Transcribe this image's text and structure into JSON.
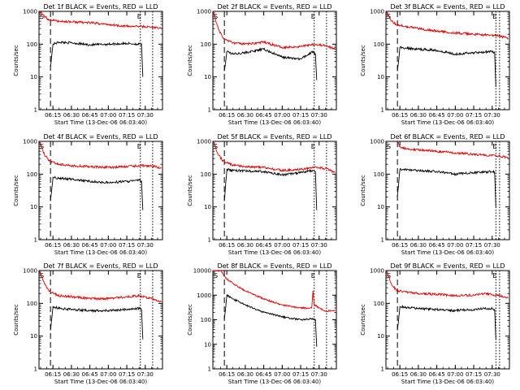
{
  "colors": {
    "events": "#000000",
    "lld": "#dd0000",
    "axis": "#000000",
    "background": "#ffffff"
  },
  "common": {
    "xlabel": "Start Time (13-Dec-06 06:03:40)",
    "ylabel": "Counts/sec",
    "x_ticks": [
      "06:15",
      "06:30",
      "06:45",
      "07:00",
      "07:15",
      "07:30"
    ],
    "y_ticks_small": [
      "1",
      "10",
      "100",
      "1000"
    ],
    "y_ticks_large": [
      "1",
      "10",
      "100",
      "1000",
      "10000"
    ],
    "marker_start": "S",
    "marker_end": "E"
  },
  "chart_data": [
    {
      "type": "line",
      "title": "Det 1f BLACK = Events, RED = LLD",
      "x_range": [
        "06:03:40",
        "07:44:00"
      ],
      "ylim": [
        1,
        1000
      ],
      "y_scale": "log",
      "start_line": "06:13",
      "end_lines": [
        "07:26",
        "07:36"
      ],
      "series": [
        {
          "name": "Events",
          "color": "black",
          "x": [
            "06:13",
            "06:15",
            "06:20",
            "06:30",
            "06:45",
            "07:00",
            "07:15",
            "07:25",
            "07:27",
            "07:28"
          ],
          "y": [
            20,
            100,
            115,
            110,
            95,
            100,
            105,
            100,
            100,
            10
          ]
        },
        {
          "name": "LLD",
          "color": "red",
          "x": [
            "06:04",
            "06:08",
            "06:12",
            "06:20",
            "06:30",
            "06:45",
            "07:00",
            "07:15",
            "07:25",
            "07:35",
            "07:43"
          ],
          "y": [
            1000,
            700,
            550,
            500,
            480,
            450,
            400,
            350,
            350,
            330,
            300
          ]
        }
      ]
    },
    {
      "type": "line",
      "title": "Det 2f BLACK = Events, RED = LLD",
      "x_range": [
        "06:03:40",
        "07:44:00"
      ],
      "ylim": [
        1,
        1000
      ],
      "y_scale": "log",
      "start_line": "06:13",
      "end_lines": [
        "07:26",
        "07:36"
      ],
      "series": [
        {
          "name": "Events",
          "color": "black",
          "x": [
            "06:13",
            "06:15",
            "06:20",
            "06:30",
            "06:45",
            "07:00",
            "07:15",
            "07:25",
            "07:27",
            "07:28"
          ],
          "y": [
            15,
            60,
            50,
            55,
            70,
            40,
            35,
            60,
            50,
            8
          ]
        },
        {
          "name": "LLD",
          "color": "red",
          "x": [
            "06:04",
            "06:08",
            "06:12",
            "06:20",
            "06:30",
            "06:45",
            "07:00",
            "07:15",
            "07:25",
            "07:35",
            "07:43"
          ],
          "y": [
            1000,
            300,
            150,
            110,
            100,
            115,
            80,
            85,
            100,
            90,
            70
          ]
        }
      ]
    },
    {
      "type": "line",
      "title": "Det 3f BLACK = Events, RED = LLD",
      "x_range": [
        "06:03:40",
        "07:44:00"
      ],
      "ylim": [
        1,
        1000
      ],
      "y_scale": "log",
      "start_line": "06:13",
      "end_lines": [
        "07:33",
        "07:36"
      ],
      "series": [
        {
          "name": "Events",
          "color": "black",
          "x": [
            "06:13",
            "06:15",
            "06:20",
            "06:30",
            "06:45",
            "07:00",
            "07:15",
            "07:30",
            "07:32",
            "07:33"
          ],
          "y": [
            15,
            80,
            75,
            70,
            65,
            50,
            55,
            60,
            55,
            5
          ]
        },
        {
          "name": "LLD",
          "color": "red",
          "x": [
            "06:04",
            "06:08",
            "06:12",
            "06:20",
            "06:30",
            "06:45",
            "07:00",
            "07:15",
            "07:25",
            "07:35",
            "07:43"
          ],
          "y": [
            1000,
            500,
            400,
            350,
            300,
            250,
            220,
            200,
            190,
            180,
            150
          ]
        }
      ]
    },
    {
      "type": "line",
      "title": "Det 4f BLACK = Events, RED = LLD",
      "x_range": [
        "06:03:40",
        "07:44:00"
      ],
      "ylim": [
        1,
        1000
      ],
      "y_scale": "log",
      "start_line": "06:13",
      "end_lines": [
        "07:26",
        "07:36"
      ],
      "series": [
        {
          "name": "Events",
          "color": "black",
          "x": [
            "06:13",
            "06:15",
            "06:20",
            "06:30",
            "06:45",
            "07:00",
            "07:15",
            "07:25",
            "07:27",
            "07:28"
          ],
          "y": [
            15,
            80,
            75,
            70,
            60,
            55,
            60,
            65,
            60,
            8
          ]
        },
        {
          "name": "LLD",
          "color": "red",
          "x": [
            "06:04",
            "06:08",
            "06:12",
            "06:20",
            "06:30",
            "06:45",
            "07:00",
            "07:15",
            "07:25",
            "07:35",
            "07:43"
          ],
          "y": [
            1000,
            400,
            250,
            200,
            180,
            170,
            160,
            170,
            180,
            180,
            150
          ]
        }
      ]
    },
    {
      "type": "line",
      "title": "Det 5f BLACK = Events, RED = LLD",
      "x_range": [
        "06:03:40",
        "07:44:00"
      ],
      "ylim": [
        1,
        1000
      ],
      "y_scale": "log",
      "start_line": "06:13",
      "end_lines": [
        "07:26",
        "07:36"
      ],
      "series": [
        {
          "name": "Events",
          "color": "black",
          "x": [
            "06:13",
            "06:15",
            "06:20",
            "06:30",
            "06:45",
            "07:00",
            "07:15",
            "07:25",
            "07:27",
            "07:28"
          ],
          "y": [
            15,
            140,
            130,
            125,
            120,
            95,
            110,
            130,
            120,
            8
          ]
        },
        {
          "name": "LLD",
          "color": "red",
          "x": [
            "06:04",
            "06:08",
            "06:12",
            "06:20",
            "06:30",
            "06:45",
            "07:00",
            "07:15",
            "07:25",
            "07:35",
            "07:43"
          ],
          "y": [
            1000,
            400,
            250,
            190,
            170,
            160,
            130,
            140,
            160,
            150,
            110
          ]
        }
      ]
    },
    {
      "type": "line",
      "title": "Det 6f BLACK = Events, RED = LLD",
      "x_range": [
        "06:03:40",
        "07:44:00"
      ],
      "ylim": [
        1,
        1000
      ],
      "y_scale": "log",
      "start_line": "06:13",
      "end_lines": [
        "07:33",
        "07:36"
      ],
      "series": [
        {
          "name": "Events",
          "color": "black",
          "x": [
            "06:13",
            "06:15",
            "06:20",
            "06:30",
            "06:45",
            "07:00",
            "07:15",
            "07:30",
            "07:32",
            "07:33"
          ],
          "y": [
            20,
            140,
            135,
            130,
            120,
            100,
            110,
            120,
            115,
            10
          ]
        },
        {
          "name": "LLD",
          "color": "red",
          "x": [
            "06:13",
            "06:15",
            "06:20",
            "06:30",
            "06:45",
            "07:00",
            "07:15",
            "07:25",
            "07:35",
            "07:43"
          ],
          "y": [
            1000,
            700,
            600,
            550,
            500,
            450,
            400,
            380,
            360,
            320
          ]
        }
      ]
    },
    {
      "type": "line",
      "title": "Det 7f BLACK = Events, RED = LLD",
      "x_range": [
        "06:03:40",
        "07:44:00"
      ],
      "ylim": [
        1,
        1000
      ],
      "y_scale": "log",
      "start_line": "06:13",
      "end_lines": [
        "07:26",
        "07:36"
      ],
      "series": [
        {
          "name": "Events",
          "color": "black",
          "x": [
            "06:13",
            "06:15",
            "06:20",
            "06:30",
            "06:45",
            "07:00",
            "07:15",
            "07:25",
            "07:27",
            "07:28"
          ],
          "y": [
            15,
            80,
            70,
            65,
            60,
            60,
            65,
            70,
            65,
            8
          ]
        },
        {
          "name": "LLD",
          "color": "red",
          "x": [
            "06:04",
            "06:08",
            "06:12",
            "06:20",
            "06:30",
            "06:45",
            "07:00",
            "07:15",
            "07:25",
            "07:35",
            "07:43"
          ],
          "y": [
            1000,
            400,
            230,
            170,
            160,
            140,
            140,
            160,
            170,
            140,
            110
          ]
        }
      ]
    },
    {
      "type": "line",
      "title": "Det 8f BLACK = Events, RED = LLD",
      "x_range": [
        "06:03:40",
        "07:44:00"
      ],
      "ylim": [
        1,
        10000
      ],
      "y_scale": "log",
      "start_line": "06:13",
      "end_lines": [
        "07:26",
        "07:36"
      ],
      "series": [
        {
          "name": "Events",
          "color": "black",
          "x": [
            "06:13",
            "06:15",
            "06:20",
            "06:30",
            "06:45",
            "07:00",
            "07:15",
            "07:25",
            "07:27",
            "07:28"
          ],
          "y": [
            100,
            1000,
            700,
            400,
            200,
            130,
            100,
            110,
            100,
            8
          ]
        },
        {
          "name": "LLD",
          "color": "red",
          "x": [
            "06:04",
            "06:10",
            "06:14",
            "06:20",
            "06:30",
            "06:45",
            "07:00",
            "07:15",
            "07:24",
            "07:25",
            "07:26",
            "07:35",
            "07:43"
          ],
          "y": [
            10000,
            10000,
            5000,
            3000,
            1500,
            700,
            400,
            300,
            300,
            1500,
            400,
            220,
            250
          ]
        }
      ]
    },
    {
      "type": "line",
      "title": "Det 9f BLACK = Events, RED = LLD",
      "x_range": [
        "06:03:40",
        "07:44:00"
      ],
      "ylim": [
        1,
        1000
      ],
      "y_scale": "log",
      "start_line": "06:13",
      "end_lines": [
        "07:33",
        "07:36"
      ],
      "series": [
        {
          "name": "Events",
          "color": "black",
          "x": [
            "06:13",
            "06:15",
            "06:20",
            "06:30",
            "06:45",
            "07:00",
            "07:15",
            "07:30",
            "07:32",
            "07:33"
          ],
          "y": [
            15,
            80,
            75,
            70,
            65,
            60,
            65,
            70,
            65,
            8
          ]
        },
        {
          "name": "LLD",
          "color": "red",
          "x": [
            "06:04",
            "06:08",
            "06:12",
            "06:20",
            "06:30",
            "06:45",
            "07:00",
            "07:15",
            "07:25",
            "07:35",
            "07:43"
          ],
          "y": [
            1000,
            400,
            250,
            220,
            200,
            190,
            170,
            180,
            200,
            170,
            150
          ]
        }
      ]
    }
  ]
}
